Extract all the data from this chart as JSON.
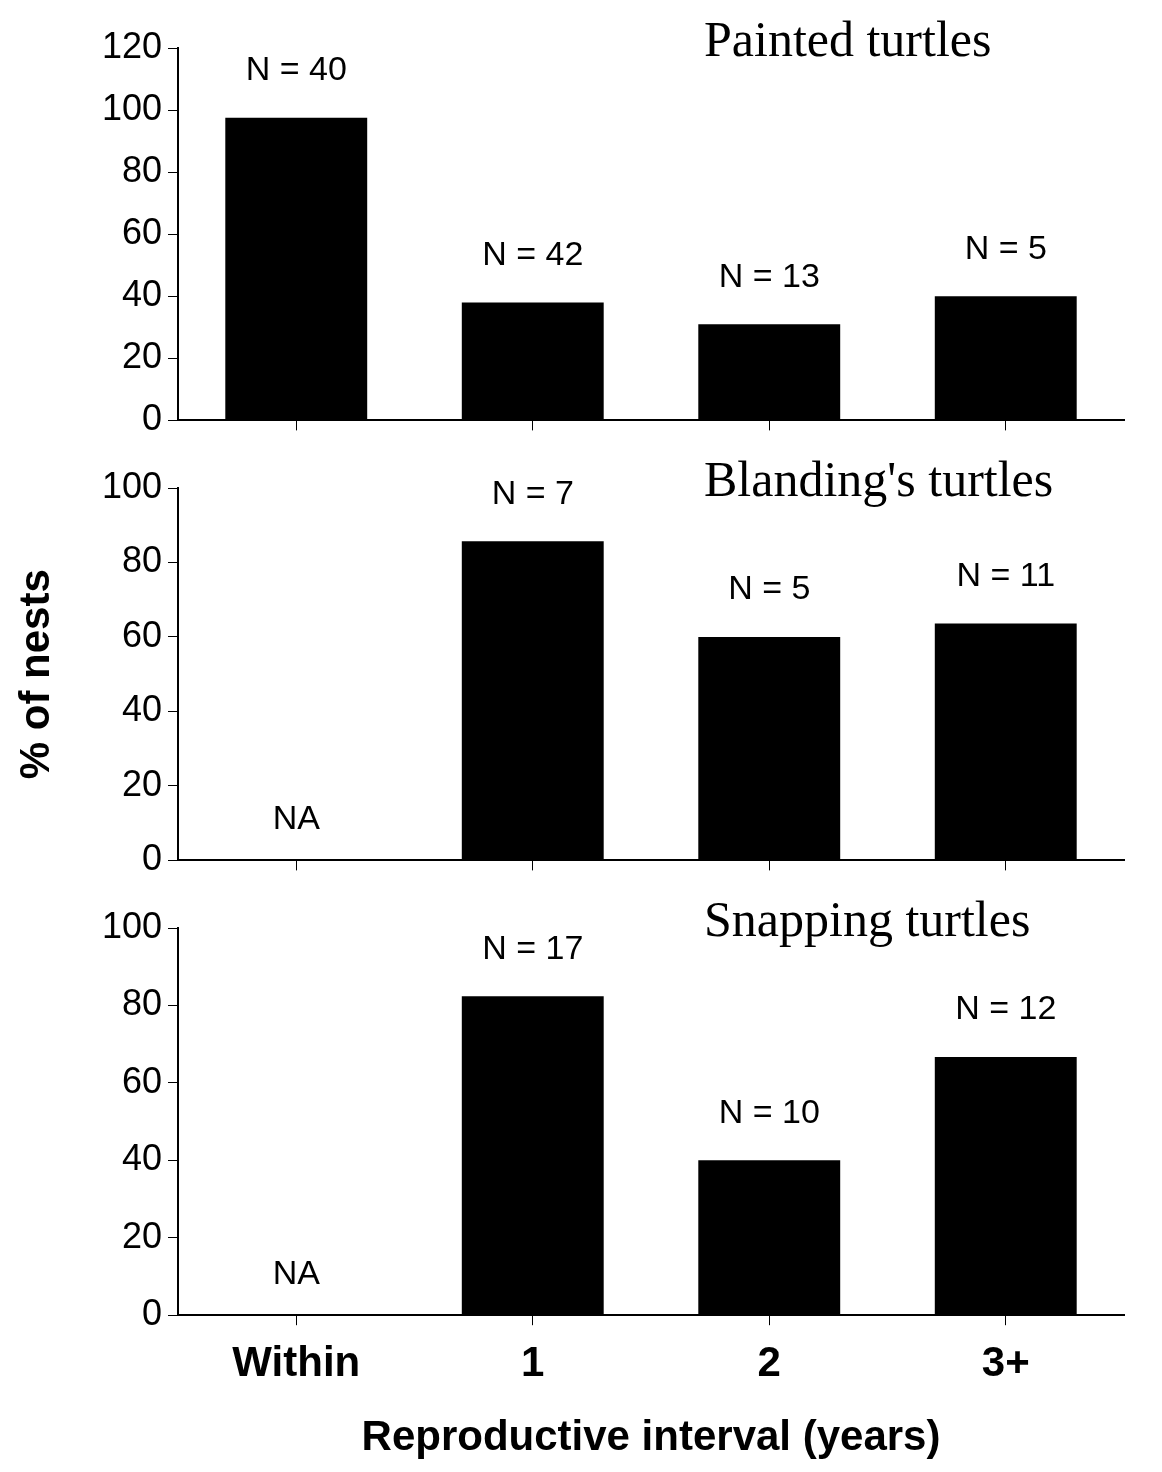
{
  "chart_data": [
    {
      "type": "bar",
      "title": "Painted turtles",
      "categories": [
        "Within",
        "1",
        "2",
        "3+"
      ],
      "values": [
        97.5,
        38,
        31,
        40
      ],
      "color": "#000000",
      "ylim": [
        0,
        120
      ],
      "yticks": [
        0,
        20,
        40,
        60,
        80,
        100,
        120
      ],
      "grid": false,
      "legend": false,
      "tick_labels": "y",
      "annotations": [
        {
          "text": "N = 40",
          "x": "Within",
          "y": 97.5
        },
        {
          "text": "N = 42",
          "x": "1",
          "y": 38
        },
        {
          "text": "N = 13",
          "x": "2",
          "y": 31
        },
        {
          "text": "N = 5",
          "x": "3+",
          "y": 40
        }
      ]
    },
    {
      "type": "bar",
      "title": "Blanding's turtles",
      "ylabel": "% of nests",
      "categories": [
        "Within",
        "1",
        "2",
        "3+"
      ],
      "values": [
        null,
        85.7,
        60,
        63.6
      ],
      "color": "#000000",
      "ylim": [
        0,
        100
      ],
      "yticks": [
        0,
        20,
        40,
        60,
        80,
        100
      ],
      "grid": false,
      "legend": false,
      "tick_labels": "y",
      "annotations": [
        "NA",
        {
          "text": "N = 7",
          "x": "1",
          "y": 85.7
        },
        {
          "text": "N = 5",
          "x": "2",
          "y": 60
        },
        {
          "text": "N = 11",
          "x": "3+",
          "y": 63.6
        }
      ]
    },
    {
      "type": "bar",
      "title": "Snapping turtles",
      "xlabel": "Reproductive interval (years)",
      "categories": [
        "Within",
        "1",
        "2",
        "3+"
      ],
      "values": [
        null,
        82.4,
        40,
        66.7
      ],
      "color": "#000000",
      "ylim": [
        0,
        100
      ],
      "yticks": [
        0,
        20,
        40,
        60,
        80,
        100
      ],
      "grid": false,
      "legend": false,
      "annotations": [
        "NA",
        {
          "text": "N = 17",
          "x": "1",
          "y": 82.4
        },
        {
          "text": "N = 10",
          "x": "2",
          "y": 40
        },
        {
          "text": "N = 12",
          "x": "3+",
          "y": 66.7
        }
      ]
    }
  ]
}
